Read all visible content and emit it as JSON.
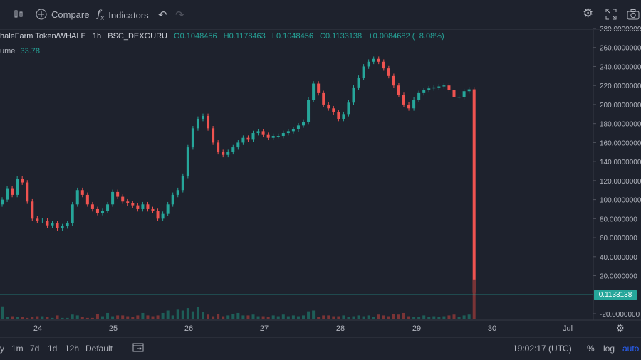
{
  "toolbar": {
    "compare_label": "Compare",
    "indicators_label": "Indicators",
    "icons": [
      "candles-icon",
      "plus-circle-icon",
      "fx-icon",
      "undo-icon",
      "redo-icon",
      "gear-icon",
      "fullscreen-icon",
      "camera-icon"
    ]
  },
  "legend": {
    "symbol": "haleFarm Token/WHALE",
    "interval": "1h",
    "exchange": "BSC_DEXGURU",
    "open": "O0.1048456",
    "high": "H0.1178463",
    "low": "L0.1048456",
    "close": "C0.1133138",
    "change": "+0.0084682 (+8.08%)"
  },
  "volume_legend": {
    "label": "ume",
    "value": "33.78"
  },
  "price_tag": "0.1133138",
  "bottom_bar": {
    "ranges": [
      "y",
      "1m",
      "7d",
      "1d",
      "12h",
      "Default"
    ],
    "time": "19:02:17 (UTC)",
    "percent_label": "%",
    "log_label": "log",
    "auto_label": "auto"
  },
  "colors": {
    "up": "#26a69a",
    "down": "#ef5350",
    "background": "#1e222d",
    "accent": "#2962ff"
  },
  "chart_data": {
    "type": "candlestick",
    "y_axis_labels": [
      "280.0000000",
      "260.0000000",
      "240.0000000",
      "220.0000000",
      "200.0000000",
      "180.0000000",
      "160.0000000",
      "140.0000000",
      "120.0000000",
      "100.0000000",
      "80.0000000",
      "60.0000000",
      "40.0000000",
      "20.0000000",
      "0.1133138",
      "-20.0000000"
    ],
    "x_axis_labels": [
      "24",
      "25",
      "26",
      "27",
      "28",
      "29",
      "30",
      "Jul"
    ],
    "ylim": [
      -22,
      283
    ],
    "candles_close": [
      100,
      112,
      105,
      122,
      118,
      98,
      80,
      78,
      78,
      73,
      75,
      70,
      72,
      75,
      95,
      110,
      105,
      95,
      90,
      86,
      88,
      95,
      108,
      103,
      98,
      96,
      94,
      90,
      95,
      90,
      88,
      80,
      85,
      95,
      105,
      110,
      125,
      155,
      175,
      185,
      188,
      175,
      160,
      150,
      147,
      150,
      155,
      160,
      165,
      163,
      170,
      172,
      168,
      165,
      167,
      167,
      170,
      172,
      174,
      178,
      182,
      205,
      222,
      212,
      200,
      196,
      192,
      185,
      190,
      202,
      218,
      228,
      240,
      245,
      248,
      245,
      238,
      230,
      220,
      210,
      200,
      196,
      205,
      212,
      215,
      217,
      218,
      219,
      220,
      215,
      208,
      208,
      214,
      216,
      2
    ],
    "volume": [
      15,
      2,
      3,
      2,
      2,
      1,
      2,
      3,
      3,
      2,
      1,
      4,
      1,
      1,
      5,
      4,
      2,
      1,
      1,
      6,
      3,
      7,
      3,
      4,
      4,
      3,
      2,
      4,
      7,
      4,
      3,
      4,
      7,
      10,
      4,
      11,
      10,
      13,
      9,
      14,
      8,
      5,
      3,
      6,
      3,
      4,
      6,
      7,
      4,
      4,
      5,
      3,
      3,
      2,
      4,
      3,
      5,
      3,
      4,
      3,
      4,
      9,
      10,
      2,
      4,
      4,
      3,
      3,
      4,
      2,
      3,
      4,
      3,
      4,
      2,
      5,
      4,
      3,
      6,
      5,
      7,
      3,
      2,
      2,
      4,
      2,
      3,
      2,
      3,
      4,
      5,
      2,
      4,
      5,
      48
    ]
  }
}
